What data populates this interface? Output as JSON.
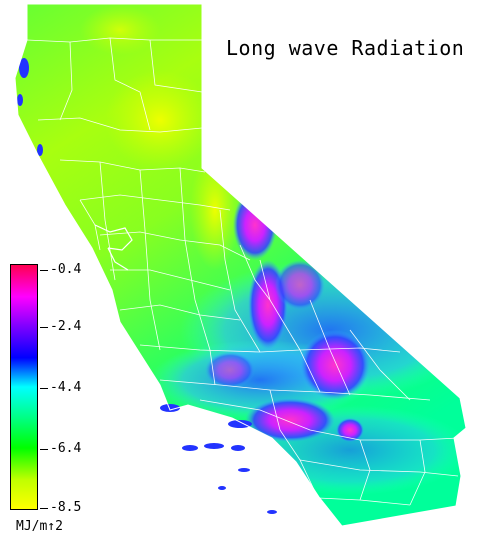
{
  "title": "Long wave Radiation",
  "legend": {
    "ticks": [
      {
        "label": "-0.4",
        "value": -0.4
      },
      {
        "label": "-2.4",
        "value": -2.4
      },
      {
        "label": "-4.4",
        "value": -4.4
      },
      {
        "label": "-6.4",
        "value": -6.4
      },
      {
        "label": "-8.5",
        "value": -8.5
      }
    ],
    "unit": "MJ/m↑2",
    "range": [
      -8.5,
      -0.4
    ],
    "colors": [
      "#ff0050",
      "#ff00ff",
      "#8000ff",
      "#0000ff",
      "#00ffff",
      "#00ff80",
      "#00ff00",
      "#c0ff00",
      "#ffff00"
    ]
  }
}
